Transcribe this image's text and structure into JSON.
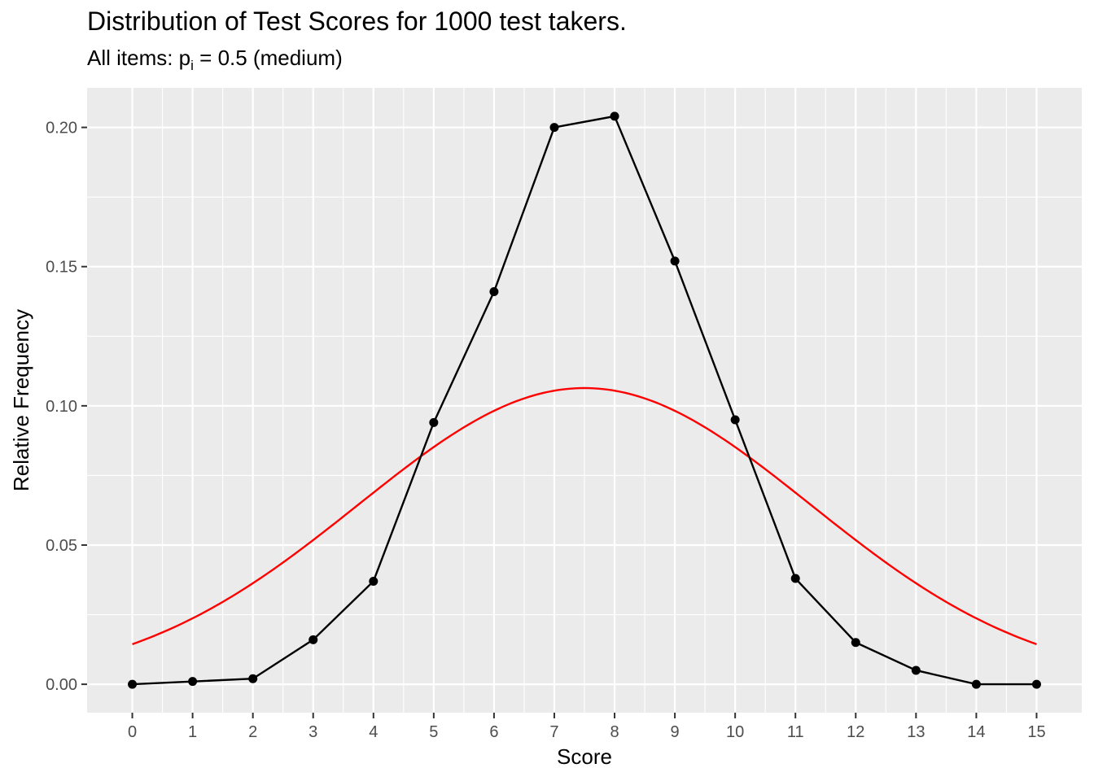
{
  "chart_data": {
    "type": "line",
    "title": "Distribution of Test Scores for 1000 test takers.",
    "subtitle": {
      "prefix": "All items: p",
      "subscript": "i",
      "suffix": " = 0.5 (medium)"
    },
    "xlabel": "Score",
    "ylabel": "Relative Frequency",
    "xlim": [
      -0.75,
      15.75
    ],
    "ylim": [
      -0.0102,
      0.2142
    ],
    "x_ticks": [
      0,
      1,
      2,
      3,
      4,
      5,
      6,
      7,
      8,
      9,
      10,
      11,
      12,
      13,
      14,
      15
    ],
    "y_ticks": [
      0.0,
      0.05,
      0.1,
      0.15,
      0.2
    ],
    "y_tick_labels": [
      "0.00",
      "0.05",
      "0.10",
      "0.15",
      "0.20"
    ],
    "grid": true,
    "panel_background": "#ebebeb",
    "grid_color": "#ffffff",
    "series": [
      {
        "kind": "line+points",
        "color": "#000000",
        "x": [
          0,
          1,
          2,
          3,
          4,
          5,
          6,
          7,
          8,
          9,
          10,
          11,
          12,
          13,
          14,
          15
        ],
        "values": [
          0.0,
          0.001,
          0.002,
          0.016,
          0.037,
          0.094,
          0.141,
          0.2,
          0.204,
          0.152,
          0.095,
          0.038,
          0.015,
          0.005,
          0.0,
          0.0
        ]
      },
      {
        "kind": "normal-curve",
        "color": "#ff0000",
        "mean": 7.5,
        "sd": 3.75,
        "x_range": [
          0,
          15
        ]
      }
    ]
  }
}
